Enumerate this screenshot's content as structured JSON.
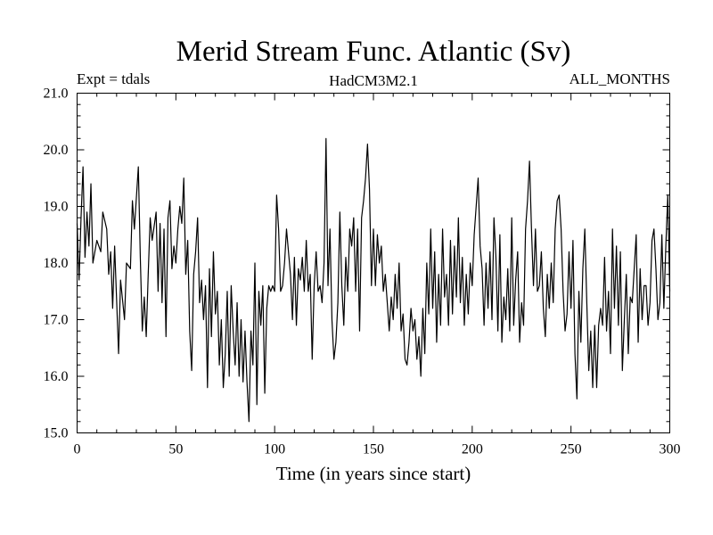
{
  "chart_data": {
    "type": "line",
    "title": "Merid Stream Func. Atlantic (Sv)",
    "subtitle_left": "Expt = tdals",
    "subtitle_center": "HadCM3M2.1",
    "subtitle_right": "ALL_MONTHS",
    "xlabel": "Time (in years since start)",
    "ylabel": "",
    "xlim": [
      0,
      300
    ],
    "ylim": [
      15.0,
      21.0
    ],
    "xticks": [
      0,
      50,
      100,
      150,
      200,
      250,
      300
    ],
    "yticks": [
      15.0,
      16.0,
      17.0,
      18.0,
      19.0,
      20.0,
      21.0
    ],
    "xtick_labels": [
      "0",
      "50",
      "100",
      "150",
      "200",
      "250",
      "300"
    ],
    "ytick_labels": [
      "15.0",
      "16.0",
      "17.0",
      "18.0",
      "19.0",
      "20.0",
      "21.0"
    ],
    "series": [
      {
        "name": "Merid Stream Func. Atlantic",
        "x_start": 0,
        "x_step": 1,
        "keypoints": [
          [
            0,
            18.7
          ],
          [
            1,
            17.7
          ],
          [
            2,
            18.8
          ],
          [
            3,
            19.7
          ],
          [
            4,
            18.1
          ],
          [
            5,
            18.9
          ],
          [
            6,
            18.3
          ],
          [
            7,
            19.4
          ],
          [
            8,
            18.0
          ],
          [
            10,
            18.4
          ],
          [
            12,
            18.2
          ],
          [
            13,
            18.9
          ],
          [
            15,
            18.6
          ],
          [
            16,
            17.8
          ],
          [
            17,
            18.2
          ],
          [
            18,
            17.2
          ],
          [
            19,
            18.3
          ],
          [
            21,
            16.4
          ],
          [
            22,
            17.7
          ],
          [
            24,
            17.0
          ],
          [
            25,
            18.0
          ],
          [
            27,
            17.9
          ],
          [
            28,
            19.1
          ],
          [
            29,
            18.6
          ],
          [
            31,
            19.7
          ],
          [
            32,
            18.1
          ],
          [
            33,
            16.8
          ],
          [
            34,
            17.4
          ],
          [
            35,
            16.7
          ],
          [
            36,
            17.8
          ],
          [
            37,
            18.8
          ],
          [
            38,
            18.4
          ],
          [
            40,
            18.9
          ],
          [
            41,
            17.5
          ],
          [
            42,
            18.7
          ],
          [
            43,
            17.3
          ],
          [
            44,
            18.6
          ],
          [
            45,
            16.7
          ],
          [
            46,
            18.8
          ],
          [
            47,
            19.1
          ],
          [
            48,
            17.9
          ],
          [
            49,
            18.3
          ],
          [
            50,
            18.0
          ],
          [
            51,
            18.6
          ],
          [
            52,
            19.0
          ],
          [
            53,
            18.7
          ],
          [
            54,
            19.5
          ],
          [
            55,
            17.8
          ],
          [
            56,
            18.4
          ],
          [
            57,
            16.8
          ],
          [
            58,
            16.1
          ],
          [
            59,
            17.8
          ],
          [
            60,
            18.2
          ],
          [
            61,
            18.8
          ],
          [
            62,
            17.3
          ],
          [
            63,
            17.7
          ],
          [
            64,
            17.0
          ],
          [
            65,
            17.6
          ],
          [
            66,
            15.8
          ],
          [
            67,
            17.9
          ],
          [
            68,
            16.7
          ],
          [
            69,
            18.2
          ],
          [
            70,
            17.1
          ],
          [
            71,
            17.5
          ],
          [
            72,
            16.2
          ],
          [
            73,
            17.0
          ],
          [
            74,
            15.8
          ],
          [
            75,
            16.4
          ],
          [
            76,
            17.5
          ],
          [
            77,
            16.0
          ],
          [
            78,
            17.6
          ],
          [
            79,
            16.8
          ],
          [
            80,
            16.2
          ],
          [
            81,
            17.3
          ],
          [
            82,
            16.0
          ],
          [
            83,
            17.0
          ],
          [
            84,
            15.9
          ],
          [
            85,
            16.8
          ],
          [
            86,
            15.9
          ],
          [
            87,
            15.2
          ],
          [
            88,
            16.8
          ],
          [
            89,
            16.2
          ],
          [
            90,
            18.0
          ],
          [
            91,
            15.5
          ],
          [
            92,
            17.5
          ],
          [
            93,
            16.9
          ],
          [
            94,
            17.6
          ],
          [
            95,
            15.7
          ],
          [
            96,
            17.2
          ],
          [
            97,
            17.6
          ],
          [
            98,
            17.5
          ],
          [
            99,
            17.6
          ],
          [
            100,
            17.5
          ],
          [
            101,
            19.2
          ],
          [
            102,
            18.6
          ],
          [
            103,
            17.5
          ],
          [
            104,
            17.6
          ],
          [
            105,
            18.0
          ],
          [
            106,
            18.6
          ],
          [
            107,
            18.2
          ],
          [
            108,
            17.8
          ],
          [
            109,
            17.0
          ],
          [
            110,
            18.1
          ],
          [
            111,
            16.9
          ],
          [
            112,
            17.9
          ],
          [
            113,
            17.7
          ],
          [
            114,
            18.1
          ],
          [
            115,
            17.5
          ],
          [
            116,
            18.4
          ],
          [
            117,
            17.5
          ],
          [
            118,
            17.8
          ],
          [
            119,
            16.3
          ],
          [
            120,
            17.6
          ],
          [
            121,
            18.2
          ],
          [
            122,
            17.5
          ],
          [
            123,
            17.6
          ],
          [
            124,
            17.3
          ],
          [
            125,
            18.0
          ],
          [
            126,
            20.2
          ],
          [
            127,
            17.6
          ],
          [
            128,
            18.6
          ],
          [
            129,
            17.0
          ],
          [
            130,
            16.3
          ],
          [
            131,
            16.6
          ],
          [
            132,
            17.3
          ],
          [
            133,
            18.9
          ],
          [
            134,
            17.6
          ],
          [
            135,
            16.9
          ],
          [
            136,
            18.1
          ],
          [
            137,
            17.5
          ],
          [
            138,
            18.6
          ],
          [
            139,
            18.3
          ],
          [
            140,
            18.8
          ],
          [
            141,
            17.5
          ],
          [
            142,
            18.6
          ],
          [
            143,
            16.8
          ],
          [
            144,
            18.8
          ],
          [
            145,
            19.1
          ],
          [
            146,
            19.5
          ],
          [
            147,
            20.1
          ],
          [
            148,
            19.3
          ],
          [
            149,
            17.6
          ],
          [
            150,
            18.6
          ],
          [
            151,
            17.6
          ],
          [
            152,
            18.5
          ],
          [
            153,
            18.0
          ],
          [
            154,
            18.3
          ],
          [
            155,
            17.5
          ],
          [
            156,
            17.8
          ],
          [
            157,
            17.3
          ],
          [
            158,
            16.8
          ],
          [
            159,
            17.4
          ],
          [
            160,
            17.0
          ],
          [
            161,
            17.8
          ],
          [
            162,
            17.2
          ],
          [
            163,
            18.0
          ],
          [
            164,
            16.8
          ],
          [
            165,
            17.1
          ],
          [
            166,
            16.3
          ],
          [
            167,
            16.2
          ],
          [
            168,
            16.6
          ],
          [
            169,
            17.2
          ],
          [
            170,
            16.8
          ],
          [
            171,
            17.0
          ],
          [
            172,
            16.3
          ],
          [
            173,
            16.7
          ],
          [
            174,
            16.0
          ],
          [
            175,
            17.2
          ],
          [
            176,
            16.4
          ],
          [
            177,
            18.0
          ],
          [
            178,
            17.1
          ],
          [
            179,
            18.6
          ],
          [
            180,
            17.2
          ],
          [
            181,
            18.2
          ],
          [
            182,
            16.6
          ],
          [
            183,
            17.8
          ],
          [
            184,
            16.9
          ],
          [
            185,
            18.6
          ],
          [
            186,
            17.4
          ],
          [
            187,
            17.8
          ],
          [
            188,
            16.9
          ],
          [
            189,
            18.4
          ],
          [
            190,
            17.1
          ],
          [
            191,
            18.3
          ],
          [
            192,
            17.4
          ],
          [
            193,
            18.8
          ],
          [
            194,
            17.3
          ],
          [
            195,
            18.1
          ],
          [
            196,
            16.9
          ],
          [
            197,
            17.8
          ],
          [
            198,
            17.1
          ],
          [
            199,
            18.0
          ],
          [
            200,
            17.6
          ],
          [
            201,
            18.5
          ],
          [
            202,
            19.0
          ],
          [
            203,
            19.5
          ],
          [
            204,
            18.3
          ],
          [
            205,
            17.9
          ],
          [
            206,
            16.9
          ],
          [
            207,
            18.0
          ],
          [
            208,
            17.2
          ],
          [
            209,
            18.2
          ],
          [
            210,
            17.0
          ],
          [
            211,
            18.8
          ],
          [
            212,
            18.1
          ],
          [
            213,
            16.8
          ],
          [
            214,
            18.5
          ],
          [
            215,
            16.6
          ],
          [
            216,
            17.4
          ],
          [
            217,
            17.0
          ],
          [
            218,
            17.9
          ],
          [
            219,
            16.8
          ],
          [
            220,
            18.8
          ],
          [
            221,
            16.9
          ],
          [
            222,
            17.7
          ],
          [
            223,
            18.2
          ],
          [
            224,
            16.6
          ],
          [
            225,
            17.3
          ],
          [
            226,
            16.9
          ],
          [
            227,
            18.6
          ],
          [
            228,
            19.1
          ],
          [
            229,
            19.8
          ],
          [
            230,
            18.6
          ],
          [
            231,
            17.6
          ],
          [
            232,
            18.6
          ],
          [
            233,
            17.5
          ],
          [
            234,
            17.6
          ],
          [
            235,
            18.2
          ],
          [
            236,
            17.2
          ],
          [
            237,
            16.7
          ],
          [
            238,
            17.8
          ],
          [
            239,
            17.2
          ],
          [
            240,
            18.0
          ],
          [
            241,
            17.3
          ],
          [
            242,
            18.6
          ],
          [
            243,
            19.1
          ],
          [
            244,
            19.2
          ],
          [
            245,
            18.6
          ],
          [
            246,
            17.5
          ],
          [
            247,
            16.8
          ],
          [
            248,
            17.1
          ],
          [
            249,
            18.2
          ],
          [
            250,
            17.2
          ],
          [
            251,
            18.4
          ],
          [
            252,
            16.4
          ],
          [
            253,
            15.6
          ],
          [
            254,
            17.5
          ],
          [
            255,
            16.6
          ],
          [
            256,
            17.9
          ],
          [
            257,
            18.6
          ],
          [
            258,
            17.3
          ],
          [
            259,
            16.1
          ],
          [
            260,
            16.8
          ],
          [
            261,
            15.8
          ],
          [
            262,
            16.9
          ],
          [
            263,
            15.8
          ],
          [
            264,
            16.9
          ],
          [
            265,
            17.2
          ],
          [
            266,
            16.9
          ],
          [
            267,
            18.1
          ],
          [
            268,
            16.8
          ],
          [
            269,
            17.5
          ],
          [
            270,
            16.4
          ],
          [
            271,
            18.6
          ],
          [
            272,
            17.2
          ],
          [
            273,
            18.3
          ],
          [
            274,
            16.9
          ],
          [
            275,
            18.2
          ],
          [
            276,
            16.1
          ],
          [
            277,
            17.0
          ],
          [
            278,
            17.8
          ],
          [
            279,
            16.4
          ],
          [
            280,
            17.4
          ],
          [
            281,
            17.3
          ],
          [
            282,
            17.9
          ],
          [
            283,
            18.5
          ],
          [
            284,
            16.6
          ],
          [
            285,
            17.9
          ],
          [
            286,
            17.0
          ],
          [
            287,
            17.6
          ],
          [
            288,
            17.6
          ],
          [
            289,
            16.9
          ],
          [
            290,
            17.3
          ],
          [
            291,
            18.4
          ],
          [
            292,
            18.6
          ],
          [
            293,
            17.9
          ],
          [
            294,
            17.0
          ],
          [
            295,
            17.3
          ],
          [
            296,
            18.5
          ],
          [
            297,
            17.2
          ],
          [
            298,
            18.3
          ],
          [
            299,
            19.2
          ],
          [
            300,
            17.5
          ]
        ]
      }
    ],
    "grid": false,
    "legend": "none",
    "colors": {
      "line": "#000000",
      "axis": "#000000",
      "background": "#ffffff"
    }
  }
}
